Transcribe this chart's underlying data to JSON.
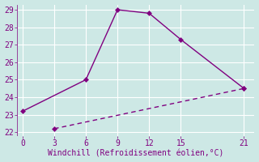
{
  "line1_x": [
    0,
    6,
    9,
    12,
    15,
    21
  ],
  "line1_y": [
    23.2,
    25.0,
    29.0,
    28.8,
    27.3,
    24.5
  ],
  "line2_x": [
    3,
    21
  ],
  "line2_y": [
    22.2,
    24.5
  ],
  "color": "#800080",
  "xlabel": "Windchill (Refroidissement éolien,°C)",
  "xlim": [
    -0.5,
    22
  ],
  "ylim": [
    21.8,
    29.3
  ],
  "xticks": [
    0,
    3,
    6,
    9,
    12,
    15,
    21
  ],
  "yticks": [
    22,
    23,
    24,
    25,
    26,
    27,
    28,
    29
  ],
  "bg_color": "#cde8e5",
  "grid_color": "#ffffff",
  "markersize": 3.5,
  "linewidth": 1.0,
  "tick_fontsize": 7,
  "xlabel_fontsize": 7
}
